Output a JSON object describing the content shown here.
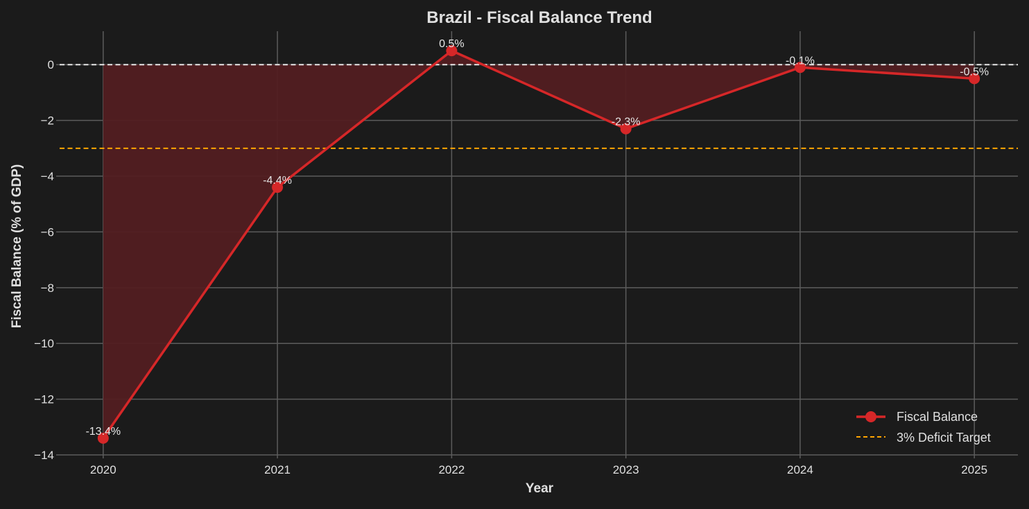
{
  "chart_data": {
    "type": "line",
    "title": "Brazil - Fiscal Balance Trend",
    "xlabel": "Year",
    "ylabel": "Fiscal Balance (% of GDP)",
    "categories": [
      "2020",
      "2021",
      "2022",
      "2023",
      "2024",
      "2025"
    ],
    "x": [
      2020,
      2021,
      2022,
      2023,
      2024,
      2025
    ],
    "series": [
      {
        "name": "Fiscal Balance",
        "values": [
          -13.4,
          -4.4,
          0.5,
          -2.3,
          -0.1,
          -0.5
        ],
        "labels": [
          "-13.4%",
          "-4.4%",
          "0.5%",
          "-2.3%",
          "-0.1%",
          "-0.5%"
        ],
        "color": "#d62728",
        "marker": "circle",
        "fill_to_zero": true,
        "fill_color": "#521e21"
      }
    ],
    "reference_lines": [
      {
        "name": "zero-line",
        "y": 0,
        "color": "#e8e8e8",
        "style": "dashed",
        "in_legend": false
      },
      {
        "name": "3% Deficit Target",
        "y": -3,
        "color": "#ffa500",
        "style": "dashed",
        "in_legend": true
      }
    ],
    "xlim": [
      2019.75,
      2025.25
    ],
    "ylim": [
      -14,
      1.2
    ],
    "yticks": [
      0,
      -2,
      -4,
      -6,
      -8,
      -10,
      -12,
      -14
    ],
    "ytick_labels": [
      "0",
      "−2",
      "−4",
      "−6",
      "−8",
      "−10",
      "−12",
      "−14"
    ],
    "grid": true,
    "legend_position": "lower right",
    "legend": [
      "Fiscal Balance",
      "3% Deficit Target"
    ]
  },
  "colors": {
    "background": "#1b1b1b",
    "grid": "#5c5c5c",
    "text": "#e0e0e0"
  }
}
